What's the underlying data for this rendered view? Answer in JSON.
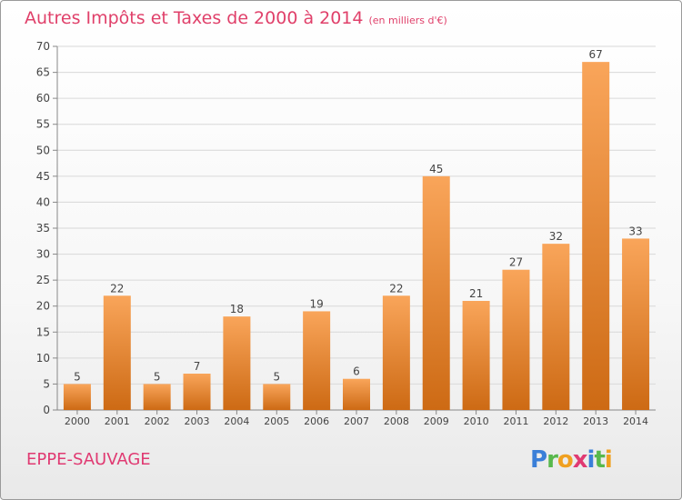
{
  "header": {
    "title": "Autres Impôts et Taxes de 2000 à 2014",
    "unit": "(en milliers d'€)"
  },
  "footer": {
    "commune": "EPPE-SAUVAGE",
    "logo": {
      "p": "P",
      "r": "r",
      "o": "o",
      "x": "x",
      "i": "i",
      "t": "t",
      "i2": "i"
    }
  },
  "colors": {
    "bar_top": "#f9a55a",
    "bar_bottom": "#cd6a14",
    "title": "#e0406a",
    "grid": "#d8d8d8"
  },
  "chart_data": {
    "type": "bar",
    "categories": [
      "2000",
      "2001",
      "2002",
      "2003",
      "2004",
      "2005",
      "2006",
      "2007",
      "2008",
      "2009",
      "2010",
      "2011",
      "2012",
      "2013",
      "2014"
    ],
    "values": [
      5,
      22,
      5,
      7,
      18,
      5,
      19,
      6,
      22,
      45,
      21,
      27,
      32,
      67,
      33
    ],
    "ylim": [
      0,
      70
    ],
    "yticks": [
      0,
      5,
      10,
      15,
      20,
      25,
      30,
      35,
      40,
      45,
      50,
      55,
      60,
      65,
      70
    ],
    "grid": true
  }
}
